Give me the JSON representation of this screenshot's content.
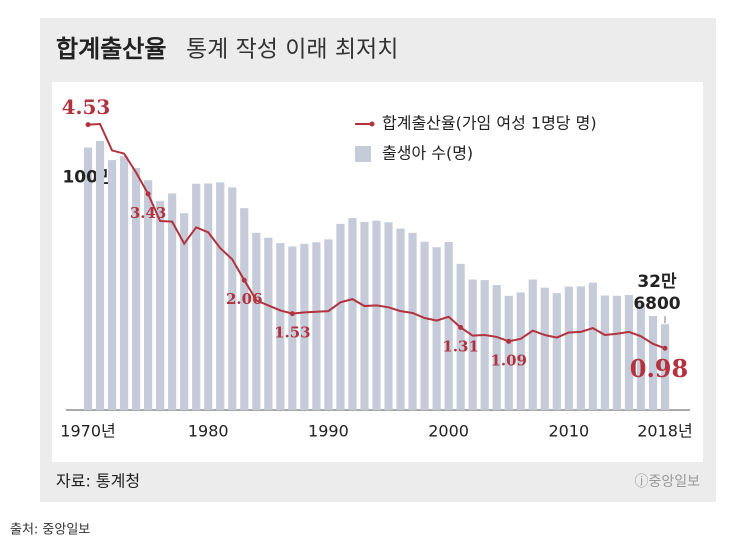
{
  "chart_data": {
    "type": "bar-line",
    "title": "합계출산율",
    "subtitle": "통계 작성 이래 최저치",
    "x": [
      1970,
      1971,
      1972,
      1973,
      1974,
      1975,
      1976,
      1977,
      1978,
      1979,
      1980,
      1981,
      1982,
      1983,
      1984,
      1985,
      1986,
      1987,
      1988,
      1989,
      1990,
      1991,
      1992,
      1993,
      1994,
      1995,
      1996,
      1997,
      1998,
      1999,
      2000,
      2001,
      2002,
      2003,
      2004,
      2005,
      2006,
      2007,
      2008,
      2009,
      2010,
      2011,
      2012,
      2013,
      2014,
      2015,
      2016,
      2017,
      2018
    ],
    "xlim": [
      1969.5,
      2018.5
    ],
    "xticks": [
      {
        "value": 1970,
        "label": "1970년"
      },
      1980,
      1990,
      2000,
      2010,
      {
        "value": 2018,
        "label": "2018년"
      }
    ],
    "ylim": [
      0,
      120
    ],
    "y2lim": [
      0,
      5
    ],
    "series": [
      {
        "name": "출생아 수(명)",
        "type": "bar",
        "color": "#c6cbd9",
        "values": [
          100,
          102.5,
          95.2,
          96.7,
          92.2,
          87.5,
          79.6,
          82.5,
          75.0,
          86.2,
          86.3,
          86.7,
          84.8,
          76.9,
          67.5,
          65.6,
          63.6,
          62.3,
          63.3,
          63.9,
          65.0,
          70.9,
          73.1,
          71.6,
          72.1,
          71.5,
          69.1,
          67.5,
          64.1,
          62.0,
          64.0,
          55.7,
          49.7,
          49.5,
          47.6,
          43.5,
          44.8,
          49.7,
          46.6,
          44.5,
          47.0,
          47.1,
          48.5,
          43.6,
          43.5,
          43.8,
          40.6,
          35.8,
          32.68
        ],
        "value_labels": [
          "100만",
          null,
          null,
          null,
          null,
          null,
          null,
          null,
          null,
          null,
          null,
          null,
          null,
          null,
          null,
          null,
          null,
          null,
          null,
          null,
          null,
          null,
          null,
          null,
          null,
          null,
          null,
          null,
          null,
          null,
          null,
          null,
          null,
          null,
          null,
          null,
          null,
          null,
          null,
          null,
          null,
          null,
          null,
          null,
          null,
          null,
          null,
          null,
          "32만\n6800"
        ]
      },
      {
        "name": "합계출산율(가임 여성 1명당 명)",
        "type": "line",
        "axis": "y2",
        "color": "#b2323d",
        "values": [
          4.53,
          4.54,
          4.12,
          4.07,
          3.77,
          3.43,
          3.0,
          2.99,
          2.64,
          2.9,
          2.82,
          2.57,
          2.39,
          2.06,
          1.74,
          1.66,
          1.58,
          1.53,
          1.55,
          1.56,
          1.57,
          1.71,
          1.76,
          1.65,
          1.66,
          1.63,
          1.57,
          1.54,
          1.46,
          1.42,
          1.48,
          1.31,
          1.18,
          1.19,
          1.16,
          1.09,
          1.13,
          1.26,
          1.19,
          1.15,
          1.23,
          1.24,
          1.3,
          1.19,
          1.21,
          1.24,
          1.17,
          1.05,
          0.98
        ],
        "value_labels": [
          "4.53",
          null,
          null,
          null,
          null,
          "3.43",
          null,
          null,
          null,
          null,
          null,
          null,
          null,
          "2.06",
          null,
          null,
          null,
          "1.53",
          null,
          null,
          null,
          null,
          null,
          null,
          null,
          null,
          null,
          null,
          null,
          null,
          null,
          "1.31",
          null,
          null,
          null,
          "1.09",
          null,
          null,
          null,
          null,
          null,
          null,
          null,
          null,
          null,
          null,
          null,
          null,
          "0.98"
        ]
      }
    ],
    "source": "자료: 통계청",
    "logo": "ⓙ중앙일보"
  },
  "caption": "출처: 중앙일보"
}
